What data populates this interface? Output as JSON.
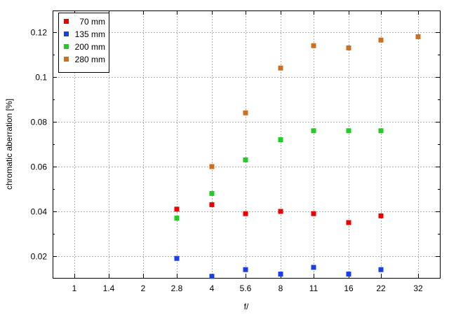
{
  "chart_data": {
    "type": "scatter",
    "title": "",
    "xlabel": "f/",
    "ylabel": "chromatic aberration [%]",
    "categories": [
      "1",
      "1.4",
      "2",
      "2.8",
      "4",
      "5.6",
      "8",
      "11",
      "16",
      "22",
      "32"
    ],
    "ylim": [
      0.0103,
      0.1297
    ],
    "yticks": [
      0.02,
      0.04,
      0.06,
      0.08,
      0.1,
      0.12
    ],
    "ytick_labels": [
      "0.02",
      "0.04",
      "0.06",
      "0.08",
      "0.1",
      "0.12"
    ],
    "grid": true,
    "legend_position": "top-left",
    "series": [
      {
        "name": "70 mm",
        "color": "#ee0000",
        "values": [
          null,
          null,
          null,
          0.041,
          0.043,
          0.039,
          0.04,
          0.039,
          0.035,
          0.038,
          null
        ]
      },
      {
        "name": "135 mm",
        "color": "#1a3ee8",
        "values": [
          null,
          null,
          null,
          0.019,
          0.011,
          0.014,
          0.012,
          0.015,
          0.012,
          0.014,
          null
        ]
      },
      {
        "name": "200 mm",
        "color": "#22cc22",
        "values": [
          null,
          null,
          null,
          0.037,
          0.048,
          0.063,
          0.072,
          0.076,
          0.076,
          0.076,
          null
        ]
      },
      {
        "name": "280 mm",
        "color": "#cc7020",
        "values": [
          null,
          null,
          null,
          null,
          0.06,
          0.084,
          0.104,
          0.114,
          0.113,
          0.1165,
          0.118
        ]
      }
    ]
  }
}
